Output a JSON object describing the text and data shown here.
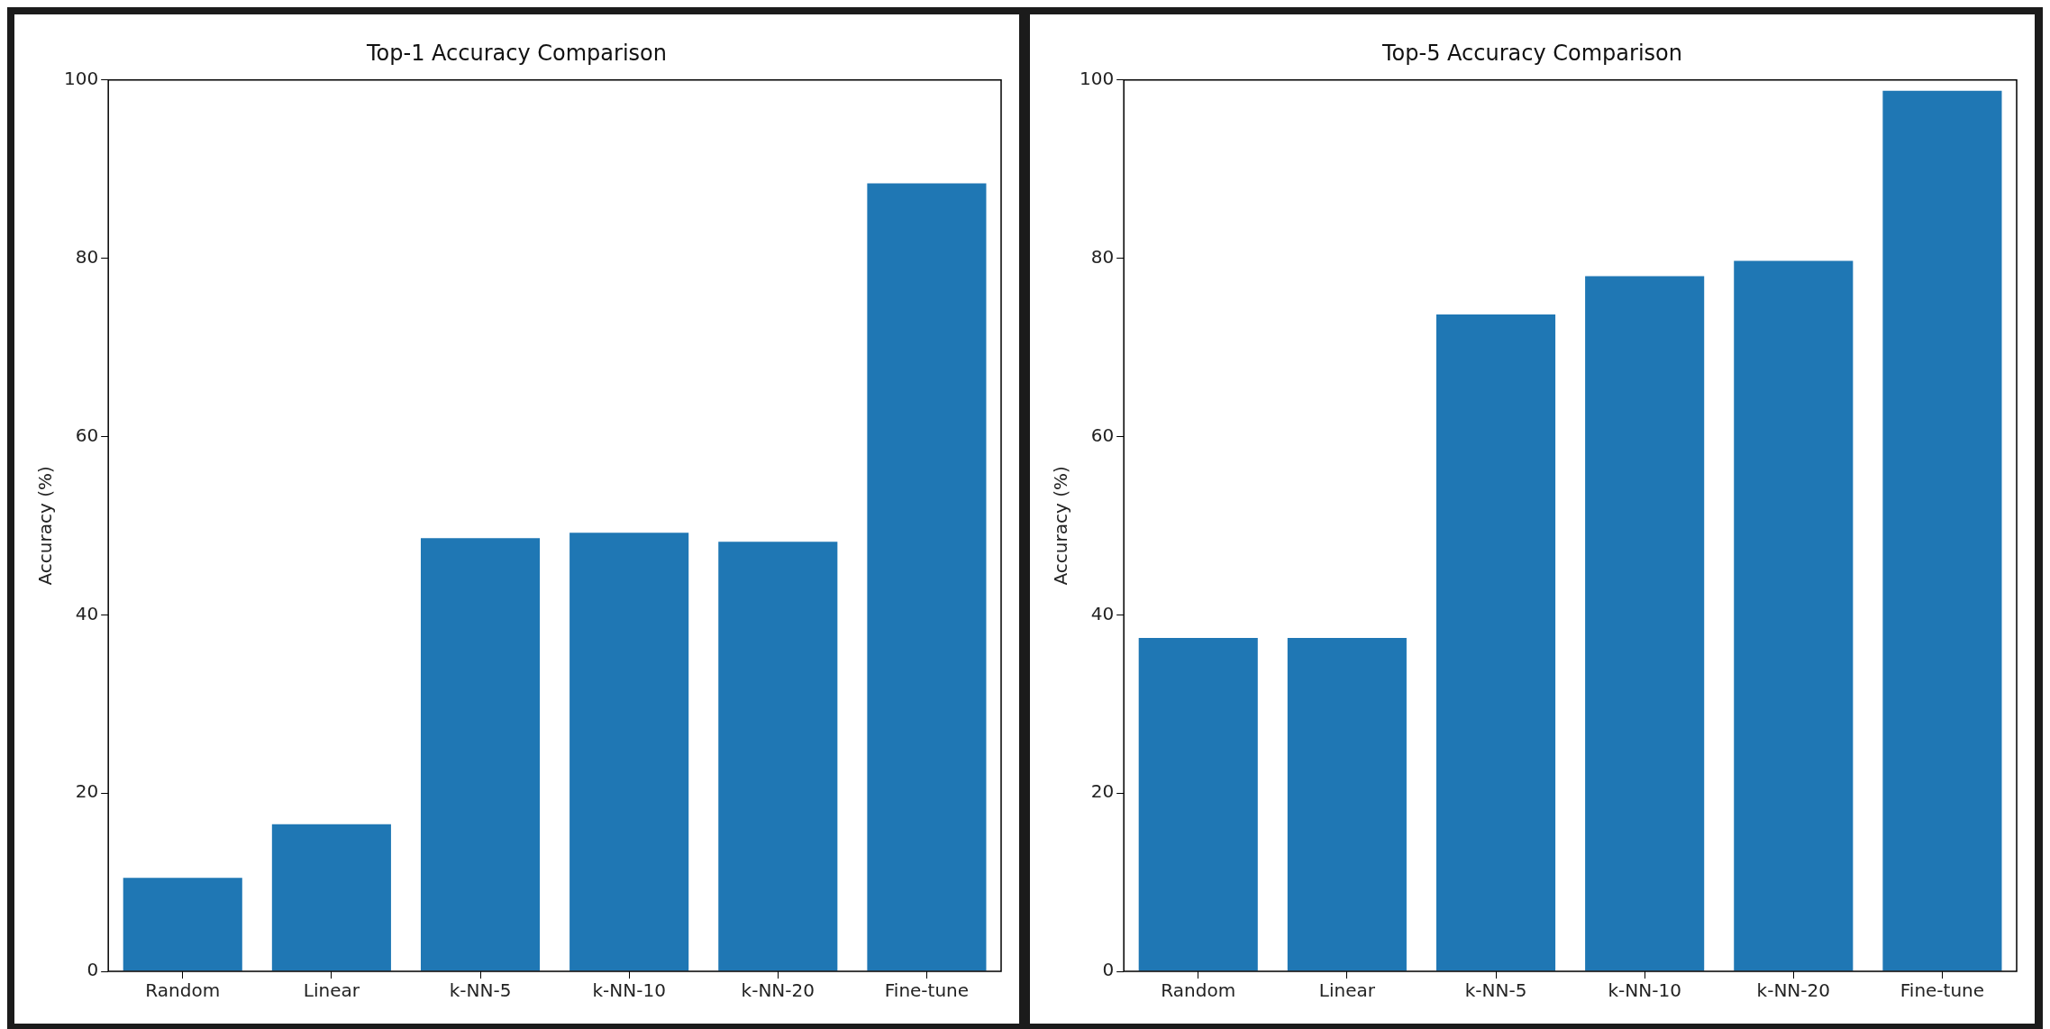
{
  "chart_data": [
    {
      "type": "bar",
      "title": "Top-1 Accuracy Comparison",
      "ylabel": "Accuracy (%)",
      "categories": [
        "Random",
        "Linear",
        "k-NN-5",
        "k-NN-10",
        "k-NN-20",
        "Fine-tune"
      ],
      "values": [
        10.5,
        16.5,
        48.6,
        49.2,
        48.2,
        88.4
      ],
      "color": "#1f77b4",
      "ylim": [
        0,
        100
      ],
      "yticks": [
        0,
        20,
        40,
        60,
        80,
        100
      ],
      "grid": false,
      "legend": false
    },
    {
      "type": "bar",
      "title": "Top-5 Accuracy Comparison",
      "ylabel": "Accuracy (%)",
      "categories": [
        "Random",
        "Linear",
        "k-NN-5",
        "k-NN-10",
        "k-NN-20",
        "Fine-tune"
      ],
      "values": [
        37.4,
        37.4,
        73.7,
        78.0,
        79.7,
        98.8
      ],
      "color": "#1f77b4",
      "ylim": [
        0,
        100
      ],
      "yticks": [
        0,
        20,
        40,
        60,
        80,
        100
      ],
      "grid": false,
      "legend": false
    }
  ]
}
